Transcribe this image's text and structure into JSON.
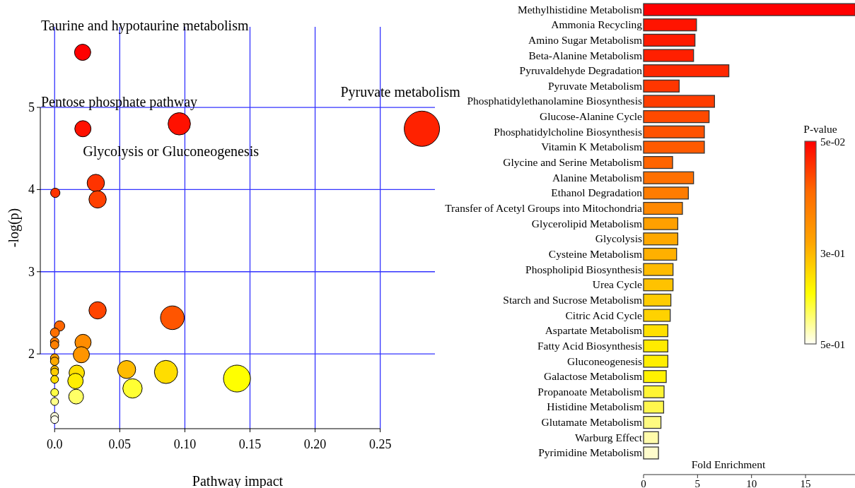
{
  "chart_data": [
    {
      "type": "bubble",
      "xlabel": "Pathway impact",
      "ylabel": "-log(p)",
      "x": [
        0.0215,
        0.0217,
        0.0957,
        0.282,
        0.0316,
        0.033,
        0.0005,
        0.033,
        0.0904,
        0.0038,
        0.0002,
        0,
        0,
        0.0218,
        0.0205,
        0,
        0,
        0,
        0,
        0,
        0.017,
        0.016,
        0.0165,
        0.0553,
        0.0598,
        0.0855,
        0.14,
        0,
        0,
        0,
        0
      ],
      "values": [
        5.67,
        4.74,
        4.8,
        4.74,
        4.08,
        3.88,
        3.96,
        2.53,
        2.44,
        2.34,
        2.26,
        2.15,
        2.11,
        2.14,
        1.99,
        1.95,
        1.91,
        1.81,
        1.78,
        1.69,
        1.77,
        1.67,
        1.48,
        1.81,
        1.58,
        1.78,
        1.7,
        1.53,
        1.42,
        1.24,
        1.2
      ],
      "sizes": [
        0.21,
        0.21,
        0.4,
        1,
        0.24,
        0.24,
        0.07,
        0.24,
        0.45,
        0.085,
        0.065,
        0.056,
        0.056,
        0.21,
        0.21,
        0.056,
        0.056,
        0.048,
        0.048,
        0.048,
        0.19,
        0.19,
        0.175,
        0.26,
        0.3,
        0.43,
        0.58,
        0.048,
        0.048,
        0.048,
        0.048
      ],
      "colors": [
        "#ff0000",
        "#ff1100",
        "#ff1100",
        "#ff2200",
        "#ff3300",
        "#ff4000",
        "#ff3300",
        "#ff4400",
        "#ff5500",
        "#ff6600",
        "#ff7000",
        "#ff7a00",
        "#ff8000",
        "#ff8c00",
        "#ff9500",
        "#ffa000",
        "#ffaa00",
        "#ffc000",
        "#ffcc00",
        "#ffdd00",
        "#ffe000",
        "#ffee00",
        "#ffff66",
        "#ffbb00",
        "#ffff33",
        "#ffdd00",
        "#ffff00",
        "#ffff44",
        "#ffff88",
        "#ffffdd",
        "#ffffee"
      ],
      "xlim": [
        -0.011,
        0.292
      ],
      "ylim": [
        1.09,
        5.98
      ],
      "xticks": [
        {
          "value": 0,
          "label": "0.0"
        },
        0.05,
        {
          "value": 0.1,
          "label": "0.10"
        },
        0.15,
        {
          "value": 0.2,
          "label": "0.20"
        },
        0.25
      ],
      "yticks": [
        2,
        3,
        4,
        5
      ],
      "grid": true,
      "annotations": [
        {
          "text": "Taurine and hypotaurine metabolism",
          "x": 0.0215,
          "y": 5.67
        },
        {
          "text": "Pentose phosphate pathway",
          "x": 0.0217,
          "y": 4.74
        },
        {
          "text": "Glycolysis or Gluconeogenesis",
          "x": 0.0957,
          "y": 4.8
        },
        {
          "text": "Pyruvate metabolism",
          "x": 0.282,
          "y": 4.74
        }
      ]
    },
    {
      "type": "bar",
      "orientation": "horizontal",
      "xlabel": "Fold Enrichment",
      "categories": [
        "Methylhistidine Metabolism",
        "Ammonia Recycling",
        "Amino Sugar Metabolism",
        "Beta-Alanine Metabolism",
        "Pyruvaldehyde Degradation",
        "Pyruvate Metabolism",
        "Phosphatidylethanolamine Biosynthesis",
        "Glucose-Alanine Cycle",
        "Phosphatidylcholine Biosynthesis",
        "Vitamin K Metabolism",
        "Glycine and Serine Metabolism",
        "Alanine Metabolism",
        "Ethanol Degradation",
        "Transfer of Acetyl Groups into Mitochondria",
        "Glycerolipid Metabolism",
        "Glycolysis",
        "Cysteine Metabolism",
        "Phospholipid Biosynthesis",
        "Urea Cycle",
        "Starch and Sucrose Metabolism",
        "Citric Acid Cycle",
        "Aspartate Metabolism",
        "Fatty Acid Biosynthesis",
        "Gluconeogenesis",
        "Galactose Metabolism",
        "Propanoate Metabolism",
        "Histidine Metabolism",
        "Glutamate Metabolism",
        "Warburg Effect",
        "Pyrimidine Metabolism"
      ],
      "values": [
        19.6,
        4.9,
        4.76,
        4.63,
        7.9,
        3.3,
        6.57,
        6.07,
        5.63,
        5.63,
        2.69,
        4.63,
        4.15,
        3.6,
        3.17,
        3.17,
        3.06,
        2.73,
        2.73,
        2.53,
        2.47,
        2.25,
        2.25,
        2.25,
        2.1,
        1.9,
        1.86,
        1.61,
        1.38,
        1.38
      ],
      "colors": [
        "#ff0000",
        "#ff1400",
        "#ff1a00",
        "#ff1f00",
        "#ff2800",
        "#ff3600",
        "#ff3d00",
        "#ff4a00",
        "#ff5200",
        "#ff5a00",
        "#ff6400",
        "#ff7000",
        "#ff7c00",
        "#ff8800",
        "#ffa000",
        "#ffa800",
        "#ffb000",
        "#ffbb00",
        "#ffc200",
        "#ffcc00",
        "#ffd200",
        "#ffe000",
        "#ffeb00",
        "#ffee00",
        "#fff200",
        "#fff533",
        "#fff74d",
        "#fffa80",
        "#fffbaa",
        "#fffccc"
      ],
      "xlim": [
        0,
        19.6
      ],
      "xticks": [
        0,
        5,
        10,
        15
      ]
    },
    {
      "type": "other",
      "title": "P-value",
      "annotations": [
        "5e-02",
        "3e-01",
        "5e-01"
      ]
    }
  ]
}
